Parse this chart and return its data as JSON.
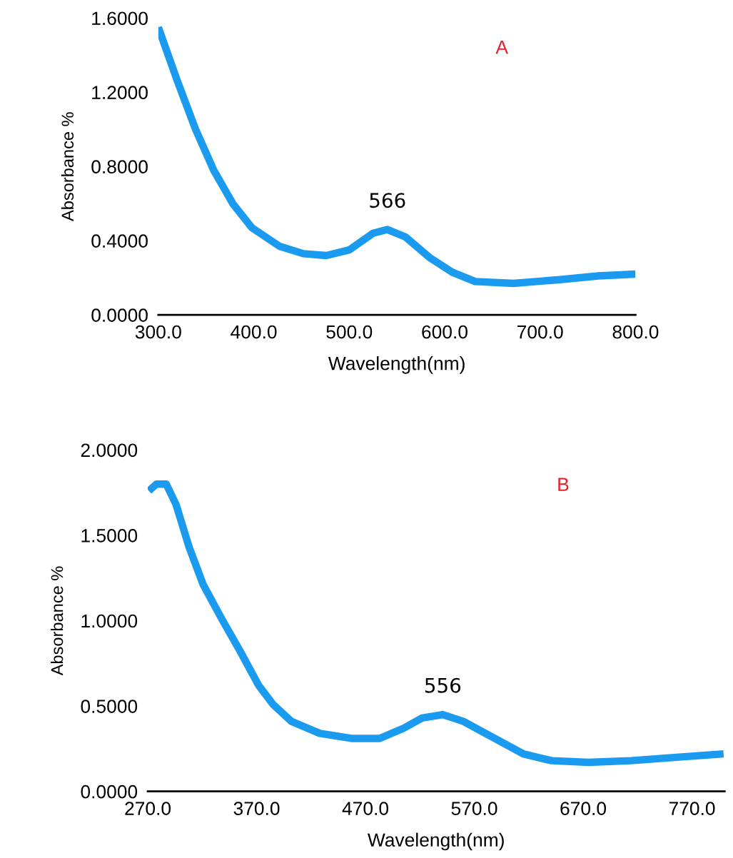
{
  "chart_data": [
    {
      "type": "line",
      "xlabel": "Wavelength(nm)",
      "ylabel": "Absorbance %",
      "xlim": [
        300,
        800
      ],
      "ylim": [
        0,
        1.6
      ],
      "xticks": [
        {
          "value": 300,
          "label": "300.0"
        },
        {
          "value": 400,
          "label": "400.0"
        },
        {
          "value": 500,
          "label": "500.0"
        },
        {
          "value": 600,
          "label": "600.0"
        },
        {
          "value": 700,
          "label": "700.0"
        },
        {
          "value": 800,
          "label": "800.0"
        }
      ],
      "yticks": [
        {
          "value": 0,
          "label": "0.0000"
        },
        {
          "value": 0.4,
          "label": "0.4000"
        },
        {
          "value": 0.8,
          "label": "0.8000"
        },
        {
          "value": 1.2,
          "label": "1.2000"
        },
        {
          "value": 1.6,
          "label": "1.6000"
        }
      ],
      "grid": false,
      "legend": false,
      "annotations": [
        {
          "text": "566",
          "x": 540,
          "y": 0.46
        },
        "A"
      ],
      "series": [
        {
          "color": "#1a9bf0",
          "x": [
            300,
            320,
            339,
            358,
            378,
            398,
            427,
            452,
            476,
            500,
            525,
            540,
            559,
            584,
            608,
            632,
            672,
            721,
            761,
            800
          ],
          "values": [
            1.55,
            1.26,
            1.0,
            0.78,
            0.6,
            0.47,
            0.37,
            0.33,
            0.32,
            0.35,
            0.44,
            0.46,
            0.42,
            0.31,
            0.23,
            0.18,
            0.17,
            0.19,
            0.21,
            0.22
          ]
        }
      ]
    },
    {
      "type": "line",
      "xlabel": "Wavelength(nm)",
      "ylabel": "Absorbance %",
      "xlim": [
        270,
        800
      ],
      "ylim": [
        0,
        2.0
      ],
      "xticks": [
        {
          "value": 270,
          "label": "270.0"
        },
        {
          "value": 370,
          "label": "370.0"
        },
        {
          "value": 470,
          "label": "470.0"
        },
        {
          "value": 570,
          "label": "570.0"
        },
        {
          "value": 670,
          "label": "670.0"
        },
        {
          "value": 770,
          "label": "770.0"
        }
      ],
      "yticks": [
        {
          "value": 0,
          "label": "0.0000"
        },
        {
          "value": 0.5,
          "label": "0.5000"
        },
        {
          "value": 1.0,
          "label": "1.0000"
        },
        {
          "value": 1.5,
          "label": "1.5000"
        },
        {
          "value": 2.0,
          "label": "2.0000"
        }
      ],
      "grid": false,
      "legend": false,
      "annotations": [
        {
          "text": "556",
          "x": 541,
          "y": 0.45
        },
        "B"
      ],
      "series": [
        {
          "color": "#1a9bf0",
          "x": [
            271,
            278,
            287,
            296,
            308,
            321,
            338,
            355,
            372,
            385,
            402,
            428,
            458,
            483,
            505,
            522,
            541,
            560,
            586,
            615,
            641,
            675,
            714,
            756,
            799
          ],
          "values": [
            1.76,
            1.8,
            1.8,
            1.68,
            1.43,
            1.21,
            1.01,
            0.82,
            0.62,
            0.51,
            0.41,
            0.34,
            0.31,
            0.31,
            0.37,
            0.43,
            0.45,
            0.41,
            0.32,
            0.22,
            0.18,
            0.17,
            0.18,
            0.2,
            0.22
          ]
        }
      ]
    }
  ]
}
